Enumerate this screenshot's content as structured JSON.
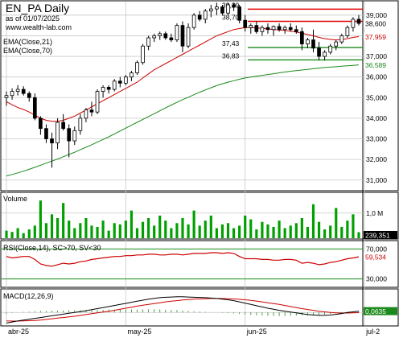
{
  "header": {
    "title": "EN_PA Daily",
    "asof": "as of 01/07/2025",
    "site": "www.wealth-lab.com"
  },
  "colors": {
    "up_candle": "#ffffff",
    "down_candle": "#000000",
    "ema21": "#cc0000",
    "ema70": "#1a8a1a",
    "resistance": "#e00000",
    "support": "#1a8a1a",
    "volume": "#00a000",
    "rsi": "#cc0000",
    "macd": "#000000",
    "signal": "#cc0000",
    "histogram": "#1a8a1a",
    "grid": "#c8c8c8"
  },
  "chart_data": [
    {
      "type": "candlestick",
      "panel": "price",
      "legend": [
        "EMA(Close,21)",
        "EMA(Close,70)"
      ],
      "ylim": [
        30.6,
        39.5
      ],
      "y_ticks": [
        "39,000",
        "38,000",
        "37,000",
        "36,000",
        "35,000",
        "34,000",
        "33,000",
        "32,000",
        "31,000"
      ],
      "x_labels": [
        {
          "index": 0,
          "label": "abr-25"
        },
        {
          "index": 21,
          "label": "may-25"
        },
        {
          "index": 42,
          "label": "jun-25"
        },
        {
          "index": 63,
          "label": "jul-2"
        }
      ],
      "ohlc": [
        [
          35.0,
          35.3,
          34.6,
          35.1
        ],
        [
          35.1,
          35.45,
          34.9,
          35.3
        ],
        [
          35.3,
          35.6,
          35.1,
          35.4
        ],
        [
          35.4,
          35.55,
          35.1,
          35.2
        ],
        [
          35.2,
          35.3,
          34.8,
          35.0
        ],
        [
          35.0,
          35.2,
          33.9,
          34.0
        ],
        [
          34.0,
          34.1,
          33.2,
          33.5
        ],
        [
          33.5,
          33.7,
          32.8,
          33.0
        ],
        [
          33.0,
          33.3,
          31.6,
          32.8
        ],
        [
          32.8,
          34.0,
          32.5,
          33.8
        ],
        [
          33.8,
          34.2,
          33.4,
          33.5
        ],
        [
          33.5,
          33.7,
          32.1,
          32.9
        ],
        [
          32.9,
          33.6,
          32.7,
          33.4
        ],
        [
          33.4,
          34.2,
          33.2,
          34.0
        ],
        [
          34.0,
          34.5,
          33.8,
          34.4
        ],
        [
          34.4,
          34.8,
          34.1,
          34.3
        ],
        [
          34.3,
          35.4,
          34.2,
          35.3
        ],
        [
          35.3,
          35.6,
          35.0,
          35.5
        ],
        [
          35.5,
          35.6,
          35.2,
          35.4
        ],
        [
          35.4,
          35.9,
          35.3,
          35.8
        ],
        [
          35.8,
          36.0,
          35.5,
          35.7
        ],
        [
          35.7,
          36.1,
          35.6,
          36.0
        ],
        [
          36.0,
          36.3,
          35.8,
          36.2
        ],
        [
          36.2,
          36.8,
          36.1,
          36.7
        ],
        [
          36.7,
          37.6,
          36.6,
          37.5
        ],
        [
          37.5,
          38.0,
          37.3,
          37.9
        ],
        [
          37.9,
          38.1,
          37.7,
          38.0
        ],
        [
          38.0,
          38.2,
          37.8,
          38.1
        ],
        [
          38.1,
          38.2,
          37.8,
          37.9
        ],
        [
          37.9,
          38.1,
          37.7,
          37.8
        ],
        [
          37.8,
          38.6,
          37.7,
          38.5
        ],
        [
          38.5,
          38.7,
          37.2,
          37.5
        ],
        [
          37.5,
          38.6,
          37.4,
          38.4
        ],
        [
          38.4,
          39.1,
          38.3,
          39.0
        ],
        [
          39.0,
          39.2,
          38.7,
          38.8
        ],
        [
          38.8,
          39.3,
          38.6,
          39.2
        ],
        [
          39.2,
          39.5,
          38.9,
          39.3
        ],
        [
          39.3,
          39.6,
          39.0,
          39.4
        ],
        [
          39.4,
          39.5,
          39.0,
          39.1
        ],
        [
          39.1,
          39.6,
          39.0,
          39.5
        ],
        [
          39.5,
          39.6,
          39.2,
          39.4
        ],
        [
          39.4,
          39.5,
          38.6,
          38.75
        ],
        [
          38.75,
          39.0,
          38.2,
          38.4
        ],
        [
          38.4,
          38.6,
          38.1,
          38.5
        ],
        [
          38.5,
          38.7,
          38.1,
          38.2
        ],
        [
          38.2,
          38.5,
          38.0,
          38.4
        ],
        [
          38.4,
          38.6,
          38.1,
          38.3
        ],
        [
          38.3,
          38.5,
          38.0,
          38.45
        ],
        [
          38.45,
          38.6,
          38.2,
          38.3
        ],
        [
          38.3,
          38.5,
          38.1,
          38.4
        ],
        [
          38.4,
          38.6,
          38.2,
          38.3
        ],
        [
          38.3,
          38.5,
          38.1,
          38.2
        ],
        [
          38.2,
          38.4,
          37.3,
          37.6
        ],
        [
          37.6,
          37.9,
          37.4,
          37.8
        ],
        [
          37.8,
          38.3,
          37.2,
          37.4
        ],
        [
          37.4,
          37.7,
          36.8,
          37.0
        ],
        [
          37.0,
          37.3,
          36.8,
          37.2
        ],
        [
          37.2,
          37.6,
          37.1,
          37.5
        ],
        [
          37.5,
          37.8,
          37.3,
          37.7
        ],
        [
          37.7,
          38.1,
          37.6,
          38.0
        ],
        [
          38.0,
          38.5,
          37.9,
          38.4
        ],
        [
          38.4,
          38.9,
          38.2,
          38.8
        ],
        [
          38.8,
          39.0,
          38.5,
          38.6
        ]
      ],
      "ema21": [
        34.8,
        34.65,
        34.52,
        34.42,
        34.3,
        34.15,
        34.0,
        33.9,
        33.85,
        33.85,
        33.9,
        34.0,
        34.1,
        34.25,
        34.4,
        34.55,
        34.7,
        34.85,
        35.0,
        35.15,
        35.3,
        35.45,
        35.6,
        35.75,
        35.95,
        36.15,
        36.35,
        36.5,
        36.65,
        36.8,
        36.95,
        37.1,
        37.25,
        37.4,
        37.55,
        37.7,
        37.85,
        38.0,
        38.1,
        38.2,
        38.3,
        38.35,
        38.4,
        38.4,
        38.38,
        38.36,
        38.33,
        38.3,
        38.28,
        38.26,
        38.22,
        38.18,
        38.12,
        38.06,
        38.0,
        37.92,
        37.86,
        37.82,
        37.8,
        37.82,
        37.86,
        37.92,
        37.959
      ],
      "ema70": [
        31.2,
        31.27,
        31.35,
        31.43,
        31.52,
        31.62,
        31.72,
        31.82,
        31.92,
        32.02,
        32.13,
        32.24,
        32.35,
        32.47,
        32.59,
        32.71,
        32.84,
        32.97,
        33.1,
        33.24,
        33.38,
        33.52,
        33.66,
        33.8,
        33.94,
        34.08,
        34.22,
        34.36,
        34.5,
        34.64,
        34.77,
        34.9,
        35.02,
        35.14,
        35.26,
        35.37,
        35.48,
        35.58,
        35.67,
        35.75,
        35.82,
        35.89,
        35.95,
        36.0,
        36.04,
        36.08,
        36.12,
        36.16,
        36.2,
        36.24,
        36.28,
        36.31,
        36.34,
        36.37,
        36.4,
        36.43,
        36.46,
        36.48,
        36.5,
        36.52,
        36.54,
        36.565,
        36.589
      ],
      "levels": [
        {
          "value": 39.29,
          "label": "39,29",
          "kind": "resistance"
        },
        {
          "value": 38.7,
          "label": "38,70",
          "kind": "resistance"
        },
        {
          "value": 37.43,
          "label": "37,43",
          "kind": "support"
        },
        {
          "value": 36.83,
          "label": "36,83",
          "kind": "support"
        }
      ],
      "badges": [
        {
          "value": 38.6,
          "label": "38,600",
          "kind": "close"
        },
        {
          "value": 37.959,
          "label": "37,959",
          "kind": "ema21"
        },
        {
          "value": 36.589,
          "label": "36,589",
          "kind": "ema70"
        }
      ]
    },
    {
      "type": "bar",
      "panel": "volume",
      "label": "Volume",
      "ylim": [
        0,
        1600000
      ],
      "y_ticks": [
        "1,0 M"
      ],
      "values": [
        300000,
        250000,
        400000,
        200000,
        350000,
        500000,
        1500000,
        600000,
        950000,
        800000,
        1400000,
        700000,
        400000,
        600000,
        800000,
        500000,
        450000,
        700000,
        300000,
        600000,
        550000,
        700000,
        1100000,
        400000,
        650000,
        800000,
        500000,
        900000,
        700000,
        400000,
        600000,
        800000,
        550000,
        1100000,
        500000,
        700000,
        900000,
        400000,
        550000,
        600000,
        400000,
        500000,
        900000,
        750000,
        350000,
        650000,
        550000,
        450000,
        700000,
        400000,
        500000,
        600000,
        800000,
        450000,
        1350000,
        650000,
        350000,
        500000,
        1200000,
        450000,
        700000,
        950000,
        239351
      ],
      "badge": "239,351"
    },
    {
      "type": "line",
      "panel": "rsi",
      "label": "RSI(Close,14), SC>70, SV<30",
      "ylim": [
        20,
        80
      ],
      "bands": [
        70,
        30
      ],
      "y_ticks": [
        "70,000",
        "30,000"
      ],
      "values": [
        60,
        58,
        59,
        60,
        60,
        56,
        50,
        48,
        47,
        49,
        51,
        50,
        51,
        53,
        54,
        56,
        57,
        58,
        59,
        60,
        60,
        61,
        61,
        62,
        62,
        63,
        63,
        62,
        62,
        63,
        63,
        62,
        63,
        64,
        64,
        64,
        65,
        65,
        64,
        65,
        64,
        60,
        57,
        57,
        57,
        56,
        56,
        55,
        55,
        56,
        56,
        55,
        51,
        52,
        51,
        49,
        50,
        52,
        53,
        55,
        57,
        58,
        59.5
      ],
      "badge": "59,534"
    },
    {
      "type": "line",
      "panel": "macd",
      "label": "MACD(12,26,9)",
      "ylim": [
        -0.6,
        1.0
      ],
      "macd": [
        -0.5,
        -0.45,
        -0.4,
        -0.36,
        -0.32,
        -0.28,
        -0.24,
        -0.2,
        -0.16,
        -0.12,
        -0.08,
        -0.04,
        0.0,
        0.04,
        0.08,
        0.13,
        0.18,
        0.23,
        0.28,
        0.33,
        0.38,
        0.43,
        0.48,
        0.53,
        0.58,
        0.63,
        0.67,
        0.7,
        0.72,
        0.73,
        0.74,
        0.74,
        0.73,
        0.72,
        0.71,
        0.7,
        0.68,
        0.66,
        0.63,
        0.6,
        0.56,
        0.5,
        0.44,
        0.38,
        0.32,
        0.26,
        0.2,
        0.15,
        0.1,
        0.06,
        0.02,
        -0.02,
        -0.06,
        -0.1,
        -0.12,
        -0.14,
        -0.14,
        -0.12,
        -0.09,
        -0.05,
        0.0,
        0.03,
        0.0635
      ],
      "signal": [
        -0.4,
        -0.41,
        -0.41,
        -0.4,
        -0.39,
        -0.38,
        -0.36,
        -0.33,
        -0.3,
        -0.27,
        -0.24,
        -0.21,
        -0.18,
        -0.14,
        -0.1,
        -0.06,
        -0.02,
        0.02,
        0.06,
        0.1,
        0.15,
        0.2,
        0.25,
        0.3,
        0.34,
        0.38,
        0.42,
        0.46,
        0.5,
        0.53,
        0.56,
        0.59,
        0.61,
        0.63,
        0.64,
        0.65,
        0.66,
        0.66,
        0.66,
        0.65,
        0.64,
        0.62,
        0.6,
        0.57,
        0.54,
        0.5,
        0.46,
        0.42,
        0.38,
        0.33,
        0.28,
        0.23,
        0.18,
        0.14,
        0.1,
        0.06,
        0.03,
        0.0,
        -0.02,
        -0.03,
        -0.03,
        -0.02,
        -0.01
      ],
      "badge": "0,0635"
    }
  ]
}
